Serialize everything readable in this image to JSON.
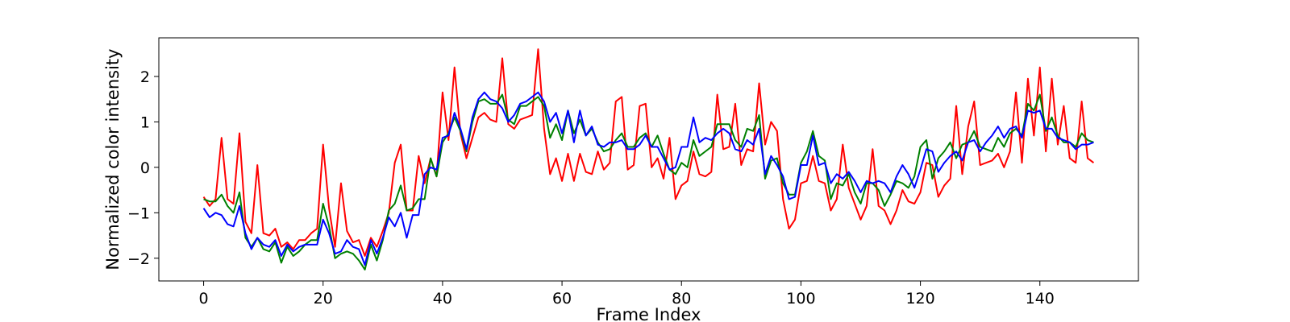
{
  "chart_data": {
    "type": "line",
    "title": "",
    "xlabel": "Frame Index",
    "ylabel": "Normalized color intensity",
    "xlim": [
      -7.5,
      156.5
    ],
    "ylim": [
      -2.5,
      2.85
    ],
    "xticks": [
      0,
      20,
      40,
      60,
      80,
      100,
      120,
      140
    ],
    "yticks": [
      -2,
      -1,
      0,
      1,
      2
    ],
    "grid": false,
    "legend": "none",
    "x": [
      0,
      1,
      2,
      3,
      4,
      5,
      6,
      7,
      8,
      9,
      10,
      11,
      12,
      13,
      14,
      15,
      16,
      17,
      18,
      19,
      20,
      21,
      22,
      23,
      24,
      25,
      26,
      27,
      28,
      29,
      30,
      31,
      32,
      33,
      34,
      35,
      36,
      37,
      38,
      39,
      40,
      41,
      42,
      43,
      44,
      45,
      46,
      47,
      48,
      49,
      50,
      51,
      52,
      53,
      54,
      55,
      56,
      57,
      58,
      59,
      60,
      61,
      62,
      63,
      64,
      65,
      66,
      67,
      68,
      69,
      70,
      71,
      72,
      73,
      74,
      75,
      76,
      77,
      78,
      79,
      80,
      81,
      82,
      83,
      84,
      85,
      86,
      87,
      88,
      89,
      90,
      91,
      92,
      93,
      94,
      95,
      96,
      97,
      98,
      99,
      100,
      101,
      102,
      103,
      104,
      105,
      106,
      107,
      108,
      109,
      110,
      111,
      112,
      113,
      114,
      115,
      116,
      117,
      118,
      119,
      120,
      121,
      122,
      123,
      124,
      125,
      126,
      127,
      128,
      129,
      130,
      131,
      132,
      133,
      134,
      135,
      136,
      137,
      138,
      139,
      140,
      141,
      142,
      143,
      144,
      145,
      146,
      147,
      148,
      149
    ],
    "series": [
      {
        "name": "red",
        "color": "#ff0000",
        "values": [
          -0.65,
          -0.85,
          -0.7,
          0.65,
          -0.7,
          -0.8,
          0.75,
          -1.2,
          -1.45,
          0.05,
          -1.45,
          -1.5,
          -1.35,
          -1.75,
          -1.65,
          -1.8,
          -1.6,
          -1.6,
          -1.45,
          -1.35,
          0.5,
          -0.9,
          -1.75,
          -0.35,
          -1.4,
          -1.65,
          -1.6,
          -1.95,
          -1.55,
          -1.75,
          -1.4,
          -1.0,
          0.1,
          0.5,
          -0.95,
          -0.95,
          0.25,
          -0.35,
          0.2,
          -0.2,
          1.65,
          0.6,
          2.2,
          0.75,
          0.2,
          0.65,
          1.1,
          1.2,
          1.05,
          1.0,
          2.4,
          0.95,
          0.85,
          1.05,
          1.1,
          1.15,
          2.6,
          0.85,
          -0.15,
          0.2,
          -0.3,
          0.3,
          -0.3,
          0.3,
          -0.1,
          -0.15,
          0.35,
          -0.05,
          0.1,
          1.45,
          1.55,
          -0.05,
          0.05,
          1.35,
          1.4,
          0.0,
          0.2,
          -0.25,
          0.65,
          -0.7,
          -0.4,
          -0.3,
          0.35,
          -0.15,
          -0.2,
          -0.1,
          1.6,
          0.4,
          0.45,
          1.4,
          0.05,
          0.4,
          0.35,
          1.85,
          0.5,
          1.0,
          0.8,
          -0.7,
          -1.35,
          -1.15,
          -0.35,
          -0.3,
          0.25,
          -0.3,
          -0.35,
          -0.95,
          -0.7,
          0.5,
          -0.45,
          -0.8,
          -1.15,
          -0.85,
          0.4,
          -0.85,
          -0.95,
          -1.25,
          -0.95,
          -0.5,
          -0.75,
          -0.8,
          -0.55,
          0.1,
          0.05,
          -0.65,
          -0.4,
          -0.25,
          1.35,
          -0.15,
          0.9,
          1.45,
          0.05,
          0.1,
          0.15,
          0.3,
          0.0,
          0.35,
          1.65,
          0.1,
          1.95,
          0.7,
          2.2,
          0.35,
          1.95,
          0.5,
          1.35,
          0.2,
          0.1,
          1.45,
          0.2,
          0.1
        ]
      },
      {
        "name": "green",
        "color": "#008000",
        "values": [
          -0.7,
          -0.75,
          -0.75,
          -0.6,
          -0.85,
          -1.0,
          -0.55,
          -1.55,
          -1.75,
          -1.55,
          -1.8,
          -1.85,
          -1.65,
          -2.1,
          -1.75,
          -1.95,
          -1.85,
          -1.7,
          -1.6,
          -1.6,
          -0.8,
          -1.3,
          -2.0,
          -1.9,
          -1.85,
          -1.9,
          -2.05,
          -2.25,
          -1.7,
          -2.05,
          -1.6,
          -0.95,
          -0.8,
          -0.4,
          -0.95,
          -0.9,
          -0.7,
          -0.7,
          0.2,
          -0.2,
          0.55,
          0.75,
          1.1,
          0.8,
          0.35,
          1.0,
          1.45,
          1.5,
          1.4,
          1.4,
          1.6,
          1.05,
          0.95,
          1.35,
          1.35,
          1.45,
          1.55,
          1.35,
          0.65,
          0.95,
          0.6,
          1.25,
          0.75,
          1.05,
          0.7,
          0.85,
          0.55,
          0.35,
          0.4,
          0.6,
          0.75,
          0.45,
          0.45,
          0.65,
          0.75,
          0.45,
          0.7,
          0.3,
          -0.05,
          -0.15,
          0.1,
          0.0,
          0.6,
          0.25,
          0.35,
          0.45,
          0.95,
          0.95,
          0.95,
          0.6,
          0.45,
          0.85,
          0.8,
          1.15,
          -0.25,
          0.15,
          0.2,
          -0.35,
          -0.6,
          -0.6,
          0.1,
          0.35,
          0.8,
          0.25,
          0.15,
          -0.7,
          -0.35,
          -0.4,
          -0.15,
          -0.55,
          -0.8,
          -0.35,
          -0.35,
          -0.5,
          -0.85,
          -0.6,
          -0.3,
          -0.35,
          -0.45,
          -0.2,
          0.45,
          0.6,
          -0.25,
          0.2,
          0.35,
          0.55,
          0.2,
          0.5,
          0.55,
          0.8,
          0.45,
          0.4,
          0.35,
          0.65,
          0.45,
          0.75,
          0.85,
          0.7,
          1.4,
          1.25,
          1.6,
          0.8,
          1.1,
          0.7,
          0.55,
          0.55,
          0.45,
          0.75,
          0.6,
          0.55
        ]
      },
      {
        "name": "blue",
        "color": "#0000ff",
        "values": [
          -0.9,
          -1.1,
          -1.0,
          -1.05,
          -1.25,
          -1.3,
          -0.85,
          -1.45,
          -1.8,
          -1.55,
          -1.7,
          -1.75,
          -1.6,
          -1.95,
          -1.7,
          -1.85,
          -1.75,
          -1.7,
          -1.7,
          -1.7,
          -1.15,
          -1.45,
          -1.9,
          -1.85,
          -1.6,
          -1.75,
          -1.8,
          -2.15,
          -1.6,
          -1.9,
          -1.55,
          -1.1,
          -1.3,
          -1.0,
          -1.55,
          -1.05,
          -1.05,
          -0.15,
          0.0,
          -0.05,
          0.65,
          0.7,
          1.2,
          0.85,
          0.4,
          1.1,
          1.5,
          1.65,
          1.5,
          1.45,
          1.3,
          1.0,
          1.15,
          1.4,
          1.45,
          1.55,
          1.65,
          1.45,
          1.0,
          1.2,
          0.75,
          1.25,
          0.55,
          1.25,
          0.7,
          0.9,
          0.5,
          0.45,
          0.55,
          0.55,
          0.6,
          0.4,
          0.4,
          0.5,
          0.7,
          0.45,
          0.45,
          0.2,
          -0.05,
          0.0,
          0.45,
          0.45,
          1.1,
          0.55,
          0.65,
          0.6,
          0.75,
          0.85,
          0.75,
          0.4,
          0.35,
          0.6,
          0.5,
          0.85,
          -0.15,
          0.25,
          0.05,
          -0.2,
          -0.7,
          -0.65,
          0.05,
          0.05,
          0.7,
          0.05,
          0.1,
          -0.35,
          -0.15,
          -0.25,
          -0.1,
          -0.3,
          -0.55,
          -0.3,
          -0.35,
          -0.3,
          -0.35,
          -0.55,
          -0.2,
          0.05,
          -0.15,
          -0.45,
          -0.05,
          0.4,
          0.35,
          -0.1,
          0.1,
          0.25,
          0.35,
          0.15,
          0.55,
          0.6,
          0.35,
          0.55,
          0.7,
          0.9,
          0.65,
          0.85,
          0.9,
          0.65,
          1.25,
          1.2,
          1.25,
          0.85,
          0.85,
          0.65,
          0.6,
          0.55,
          0.4,
          0.5,
          0.5,
          0.55
        ]
      }
    ]
  }
}
